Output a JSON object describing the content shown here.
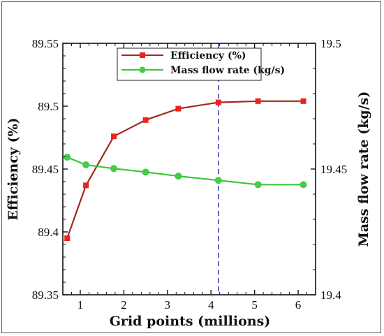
{
  "chart_data": {
    "type": "line",
    "xlabel": "Grid points (millions)",
    "x_ticks": [
      "1",
      "2",
      "3",
      "4",
      "5",
      "6"
    ],
    "xlim": [
      0.6,
      6.4
    ],
    "left_axis": {
      "label": "Efficiency (%)",
      "ylim": [
        89.35,
        89.55
      ],
      "ticks": [
        "89.35",
        "89.4",
        "89.45",
        "89.5",
        "89.55"
      ]
    },
    "right_axis": {
      "label": "Mass flow rate (kg/s)",
      "ylim": [
        19.4,
        19.5
      ],
      "ticks": [
        "19.4",
        "19.45",
        "19.5"
      ]
    },
    "series": [
      {
        "name": "Efficiency (%)",
        "axis": "left",
        "color": "#a0291b",
        "marker": "square",
        "marker_color": "#ee2222",
        "x": [
          0.7,
          1.13,
          1.77,
          2.5,
          3.25,
          4.17,
          5.08,
          6.12
        ],
        "y": [
          89.395,
          89.437,
          89.476,
          89.489,
          89.498,
          89.503,
          89.504,
          89.504
        ]
      },
      {
        "name": "Mass flow rate (kg/s)",
        "axis": "right",
        "color": "#3cc43c",
        "marker": "circle",
        "marker_color": "#44cc44",
        "x": [
          0.7,
          1.13,
          1.77,
          2.5,
          3.25,
          4.17,
          5.08,
          6.12
        ],
        "y": [
          19.4547,
          19.4517,
          19.4502,
          19.4488,
          19.4472,
          19.4455,
          19.4438,
          19.4438
        ]
      }
    ],
    "reference_line": {
      "x": 4.17,
      "style": "dashed",
      "color": "#1a1aa0"
    },
    "legend": "top-center",
    "grid": false
  }
}
